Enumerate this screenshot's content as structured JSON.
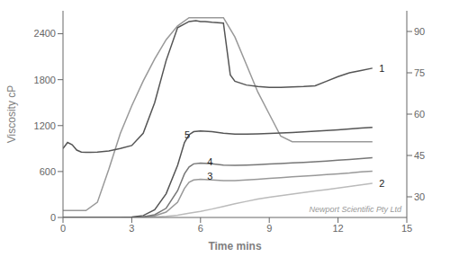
{
  "chart_data": {
    "type": "line",
    "xlabel": "Time mins",
    "ylabel": "Viscosity cP",
    "xlim": [
      0,
      15
    ],
    "xticks": [
      0,
      3,
      6,
      9,
      12,
      15
    ],
    "ylim": [
      0,
      2700
    ],
    "yticks": [
      0,
      600,
      1200,
      1800,
      2400
    ],
    "y2lim": [
      22.5,
      97.5
    ],
    "y2ticks": [
      30,
      45,
      60,
      75,
      90
    ],
    "grid": false,
    "series": [
      {
        "color": "#999999",
        "axis": "y2",
        "x": [
          0.0,
          0.5,
          1.0,
          1.5,
          2.0,
          2.5,
          3.0,
          3.5,
          4.0,
          4.5,
          5.0,
          5.5,
          6.0,
          6.5,
          7.0,
          7.5,
          8.0,
          8.5,
          9.0,
          9.5,
          10.0,
          10.5,
          11.0,
          11.5,
          12.0,
          12.5,
          13.0,
          13.5
        ],
        "values": [
          25,
          25,
          25,
          28,
          40,
          53,
          63,
          72,
          80,
          87,
          92,
          95,
          95,
          95,
          95,
          88,
          78,
          68,
          60,
          52,
          50,
          50,
          50,
          50,
          50,
          50,
          50,
          50
        ]
      },
      {
        "color": "#bbbbbb",
        "x": [
          0.0,
          1.0,
          2.0,
          2.5,
          3.0,
          3.5,
          4.0,
          4.5,
          5.0,
          5.5,
          6.0,
          6.5,
          7.0,
          7.5,
          8.0,
          8.5,
          9.0,
          9.5,
          10.0,
          10.5,
          11.0,
          11.5,
          12.0,
          12.5,
          13.0,
          13.5
        ],
        "values": [
          0,
          0,
          0,
          0,
          0,
          0,
          5,
          15,
          30,
          55,
          80,
          110,
          145,
          180,
          210,
          240,
          265,
          285,
          305,
          325,
          345,
          365,
          385,
          405,
          425,
          445
        ]
      },
      {
        "color": "#999999",
        "x": [
          0.0,
          1.0,
          2.0,
          2.5,
          3.0,
          3.5,
          4.0,
          4.5,
          5.0,
          5.3,
          5.5,
          5.7,
          6.0,
          6.5,
          7.0,
          7.5,
          8.0,
          8.5,
          9.0,
          9.5,
          10.0,
          10.5,
          11.0,
          11.5,
          12.0,
          12.5,
          13.0,
          13.5
        ],
        "values": [
          0,
          0,
          0,
          0,
          0,
          5,
          20,
          70,
          200,
          380,
          460,
          490,
          500,
          490,
          480,
          480,
          490,
          500,
          510,
          520,
          530,
          540,
          550,
          560,
          570,
          580,
          595,
          605
        ]
      },
      {
        "color": "#777777",
        "x": [
          0.0,
          1.0,
          2.0,
          2.5,
          3.0,
          3.5,
          4.0,
          4.5,
          5.0,
          5.3,
          5.5,
          5.7,
          6.0,
          6.5,
          7.0,
          7.5,
          8.0,
          8.5,
          9.0,
          9.5,
          10.0,
          10.5,
          11.0,
          11.5,
          12.0,
          12.5,
          13.0,
          13.5
        ],
        "values": [
          0,
          0,
          0,
          0,
          0,
          8,
          35,
          120,
          350,
          570,
          660,
          700,
          710,
          700,
          685,
          680,
          685,
          690,
          698,
          705,
          712,
          720,
          728,
          738,
          748,
          758,
          770,
          780
        ]
      },
      {
        "color": "#555555",
        "x": [
          0.0,
          1.0,
          2.0,
          2.5,
          3.0,
          3.5,
          4.0,
          4.5,
          5.0,
          5.3,
          5.5,
          5.7,
          6.0,
          6.5,
          7.0,
          7.5,
          8.0,
          8.5,
          9.0,
          9.5,
          10.0,
          10.5,
          11.0,
          11.5,
          12.0,
          12.5,
          13.0,
          13.5
        ],
        "values": [
          0,
          0,
          0,
          0,
          5,
          25,
          100,
          310,
          680,
          980,
          1080,
          1120,
          1130,
          1120,
          1100,
          1090,
          1090,
          1093,
          1098,
          1104,
          1110,
          1118,
          1126,
          1136,
          1146,
          1156,
          1168,
          1178
        ]
      },
      {
        "color": "#555555",
        "x": [
          0.0,
          0.2,
          0.4,
          0.6,
          0.8,
          1.0,
          1.2,
          1.5,
          2.0,
          2.5,
          3.0,
          3.5,
          4.0,
          4.5,
          5.0,
          5.5,
          5.8,
          6.0,
          6.2,
          6.5,
          7.0,
          7.3,
          7.5,
          8.0,
          8.5,
          9.0,
          9.5,
          10.0,
          10.5,
          11.0,
          11.5,
          12.0,
          12.5,
          13.0,
          13.5
        ],
        "values": [
          900,
          980,
          950,
          880,
          855,
          850,
          850,
          855,
          870,
          900,
          940,
          1100,
          1500,
          2050,
          2480,
          2560,
          2570,
          2560,
          2560,
          2550,
          2540,
          1860,
          1780,
          1730,
          1710,
          1700,
          1700,
          1705,
          1710,
          1720,
          1780,
          1840,
          1890,
          1920,
          1950
        ]
      }
    ],
    "annotations": [
      {
        "text": "1",
        "x": 13.6,
        "y": 1950
      },
      {
        "text": "2",
        "x": 13.6,
        "y": 445
      },
      {
        "text": "3",
        "x": 6.1,
        "y": 540
      },
      {
        "text": "4",
        "x": 6.1,
        "y": 730
      },
      {
        "text": "5",
        "x": 5.1,
        "y": 1080
      }
    ],
    "watermark": "Newport Scientific Pty Ltd"
  }
}
